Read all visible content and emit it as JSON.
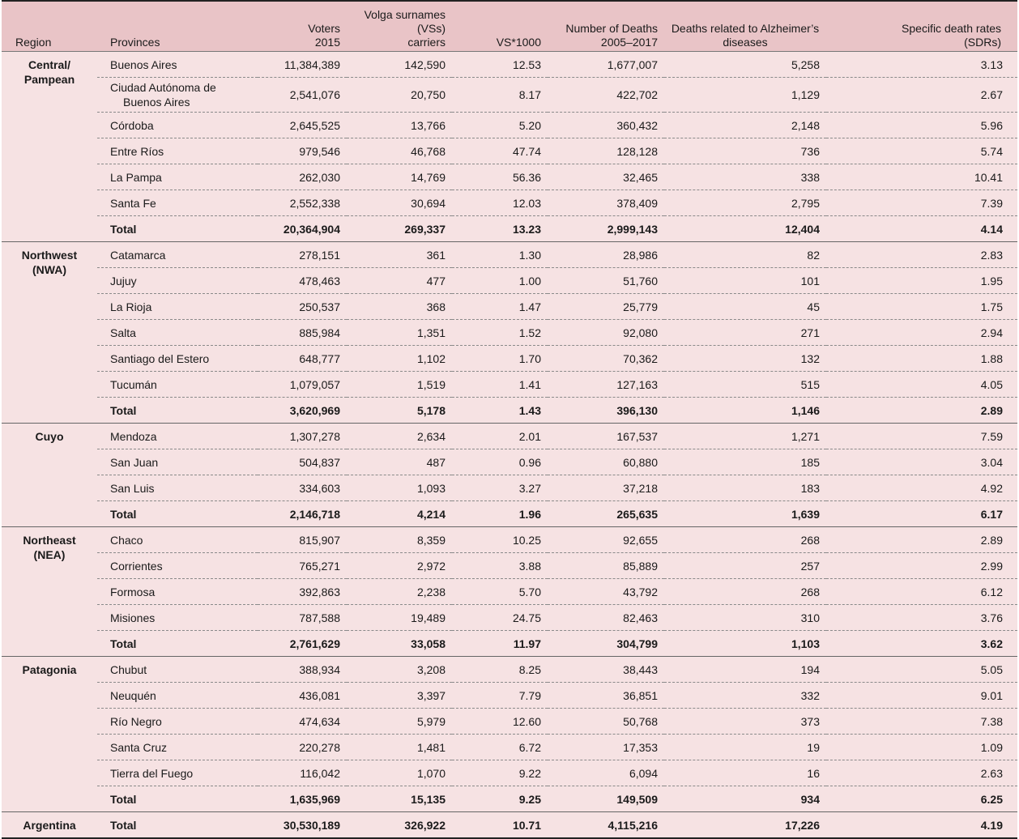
{
  "headers": {
    "region": "Region",
    "provinces": "Provinces",
    "voters": [
      "Voters",
      "2015"
    ],
    "vs": [
      "Volga surnames (VSs)",
      "carriers"
    ],
    "vs1000": "VS*1000",
    "deaths": [
      "Number of Deaths",
      "2005–2017"
    ],
    "alz": [
      "Deaths related to Alzheimer’s",
      "diseases"
    ],
    "sdr": [
      "Specific death rates",
      "(SDRs)"
    ]
  },
  "regions": [
    {
      "name": [
        "Central/",
        "Pampean"
      ],
      "rows": [
        {
          "province": "Buenos Aires",
          "voters": "11,384,389",
          "vs": "142,590",
          "vs1000": "12.53",
          "deaths": "1,677,007",
          "alz": "5,258",
          "sdr": "3.13"
        },
        {
          "province": [
            "Ciudad Autónoma de",
            "Buenos Aires"
          ],
          "voters": "2,541,076",
          "vs": "20,750",
          "vs1000": "8.17",
          "deaths": "422,702",
          "alz": "1,129",
          "sdr": "2.67"
        },
        {
          "province": "Córdoba",
          "voters": "2,645,525",
          "vs": "13,766",
          "vs1000": "5.20",
          "deaths": "360,432",
          "alz": "2,148",
          "sdr": "5.96"
        },
        {
          "province": "Entre Ríos",
          "voters": "979,546",
          "vs": "46,768",
          "vs1000": "47.74",
          "deaths": "128,128",
          "alz": "736",
          "sdr": "5.74"
        },
        {
          "province": "La Pampa",
          "voters": "262,030",
          "vs": "14,769",
          "vs1000": "56.36",
          "deaths": "32,465",
          "alz": "338",
          "sdr": "10.41"
        },
        {
          "province": "Santa Fe",
          "voters": "2,552,338",
          "vs": "30,694",
          "vs1000": "12.03",
          "deaths": "378,409",
          "alz": "2,795",
          "sdr": "7.39"
        }
      ],
      "total": {
        "label": "Total",
        "voters": "20,364,904",
        "vs": "269,337",
        "vs1000": "13.23",
        "deaths": "2,999,143",
        "alz": "12,404",
        "sdr": "4.14"
      }
    },
    {
      "name": [
        "Northwest",
        "(NWA)"
      ],
      "rows": [
        {
          "province": "Catamarca",
          "voters": "278,151",
          "vs": "361",
          "vs1000": "1.30",
          "deaths": "28,986",
          "alz": "82",
          "sdr": "2.83"
        },
        {
          "province": "Jujuy",
          "voters": "478,463",
          "vs": "477",
          "vs1000": "1.00",
          "deaths": "51,760",
          "alz": "101",
          "sdr": "1.95"
        },
        {
          "province": "La Rioja",
          "voters": "250,537",
          "vs": "368",
          "vs1000": "1.47",
          "deaths": "25,779",
          "alz": "45",
          "sdr": "1.75"
        },
        {
          "province": "Salta",
          "voters": "885,984",
          "vs": "1,351",
          "vs1000": "1.52",
          "deaths": "92,080",
          "alz": "271",
          "sdr": "2.94"
        },
        {
          "province": "Santiago del Estero",
          "voters": "648,777",
          "vs": "1,102",
          "vs1000": "1.70",
          "deaths": "70,362",
          "alz": "132",
          "sdr": "1.88"
        },
        {
          "province": "Tucumán",
          "voters": "1,079,057",
          "vs": "1,519",
          "vs1000": "1.41",
          "deaths": "127,163",
          "alz": "515",
          "sdr": "4.05"
        }
      ],
      "total": {
        "label": "Total",
        "voters": "3,620,969",
        "vs": "5,178",
        "vs1000": "1.43",
        "deaths": "396,130",
        "alz": "1,146",
        "sdr": "2.89"
      }
    },
    {
      "name": [
        "Cuyo"
      ],
      "rows": [
        {
          "province": "Mendoza",
          "voters": "1,307,278",
          "vs": "2,634",
          "vs1000": "2.01",
          "deaths": "167,537",
          "alz": "1,271",
          "sdr": "7.59"
        },
        {
          "province": "San Juan",
          "voters": "504,837",
          "vs": "487",
          "vs1000": "0.96",
          "deaths": "60,880",
          "alz": "185",
          "sdr": "3.04"
        },
        {
          "province": "San Luis",
          "voters": "334,603",
          "vs": "1,093",
          "vs1000": "3.27",
          "deaths": "37,218",
          "alz": "183",
          "sdr": "4.92"
        }
      ],
      "total": {
        "label": "Total",
        "voters": "2,146,718",
        "vs": "4,214",
        "vs1000": "1.96",
        "deaths": "265,635",
        "alz": "1,639",
        "sdr": "6.17"
      }
    },
    {
      "name": [
        "Northeast",
        "(NEA)"
      ],
      "rows": [
        {
          "province": "Chaco",
          "voters": "815,907",
          "vs": "8,359",
          "vs1000": "10.25",
          "deaths": "92,655",
          "alz": "268",
          "sdr": "2.89"
        },
        {
          "province": "Corrientes",
          "voters": "765,271",
          "vs": "2,972",
          "vs1000": "3.88",
          "deaths": "85,889",
          "alz": "257",
          "sdr": "2.99"
        },
        {
          "province": "Formosa",
          "voters": "392,863",
          "vs": "2,238",
          "vs1000": "5.70",
          "deaths": "43,792",
          "alz": "268",
          "sdr": "6.12"
        },
        {
          "province": "Misiones",
          "voters": "787,588",
          "vs": "19,489",
          "vs1000": "24.75",
          "deaths": "82,463",
          "alz": "310",
          "sdr": "3.76"
        }
      ],
      "total": {
        "label": "Total",
        "voters": "2,761,629",
        "vs": "33,058",
        "vs1000": "11.97",
        "deaths": "304,799",
        "alz": "1,103",
        "sdr": "3.62"
      }
    },
    {
      "name": [
        "Patagonia"
      ],
      "rows": [
        {
          "province": "Chubut",
          "voters": "388,934",
          "vs": "3,208",
          "vs1000": "8.25",
          "deaths": "38,443",
          "alz": "194",
          "sdr": "5.05"
        },
        {
          "province": "Neuquén",
          "voters": "436,081",
          "vs": "3,397",
          "vs1000": "7.79",
          "deaths": "36,851",
          "alz": "332",
          "sdr": "9.01"
        },
        {
          "province": "Río Negro",
          "voters": "474,634",
          "vs": "5,979",
          "vs1000": "12.60",
          "deaths": "50,768",
          "alz": "373",
          "sdr": "7.38"
        },
        {
          "province": "Santa Cruz",
          "voters": "220,278",
          "vs": "1,481",
          "vs1000": "6.72",
          "deaths": "17,353",
          "alz": "19",
          "sdr": "1.09"
        },
        {
          "province": "Tierra del Fuego",
          "voters": "116,042",
          "vs": "1,070",
          "vs1000": "9.22",
          "deaths": "6,094",
          "alz": "16",
          "sdr": "2.63"
        }
      ],
      "total": {
        "label": "Total",
        "voters": "1,635,969",
        "vs": "15,135",
        "vs1000": "9.25",
        "deaths": "149,509",
        "alz": "934",
        "sdr": "6.25"
      }
    }
  ],
  "country": {
    "name": "Argentina",
    "label": "Total",
    "voters": "30,530,189",
    "vs": "326,922",
    "vs1000": "10.71",
    "deaths": "4,115,216",
    "alz": "17,226",
    "sdr": "4.19"
  }
}
